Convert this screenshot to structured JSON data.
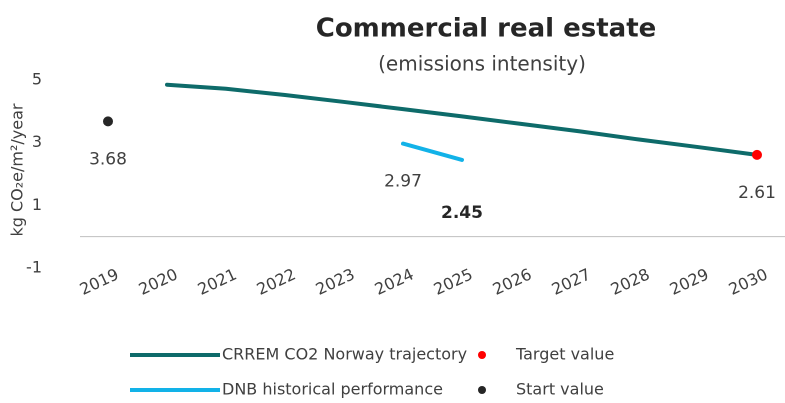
{
  "chart_data": {
    "type": "line",
    "title": "Commercial real estate",
    "subtitle": "(emissions intensity)",
    "y_label": "kg CO₂e/m²/year",
    "categories": [
      "2019",
      "2020",
      "2021",
      "2022",
      "2023",
      "2024",
      "2025",
      "2026",
      "2027",
      "2028",
      "2029",
      "2030"
    ],
    "ylim": [
      -1,
      5
    ],
    "yticks": [
      -1,
      1,
      3,
      5
    ],
    "legend": "bottom",
    "series": [
      {
        "name": "CRREM CO2 Norway trajectory",
        "color": "#0e6b6a",
        "style": "line",
        "data_labels": false,
        "values": [
          null,
          4.85,
          4.72,
          4.52,
          4.3,
          4.07,
          3.84,
          3.6,
          3.36,
          3.1,
          2.86,
          2.61
        ]
      },
      {
        "name": "Target value",
        "color": "#ff0000",
        "style": "point",
        "data_labels": true,
        "values": [
          null,
          null,
          null,
          null,
          null,
          null,
          null,
          null,
          null,
          null,
          null,
          2.61
        ]
      },
      {
        "name": "DNB historical performance",
        "color": "#12b2e8",
        "style": "line",
        "data_labels": true,
        "values": [
          null,
          null,
          null,
          null,
          null,
          2.97,
          2.45,
          null,
          null,
          null,
          null,
          null
        ]
      },
      {
        "name": "Start value",
        "color": "#262626",
        "style": "point",
        "data_labels": true,
        "values": [
          3.68,
          null,
          null,
          null,
          null,
          null,
          null,
          null,
          null,
          null,
          null,
          null
        ]
      }
    ]
  }
}
